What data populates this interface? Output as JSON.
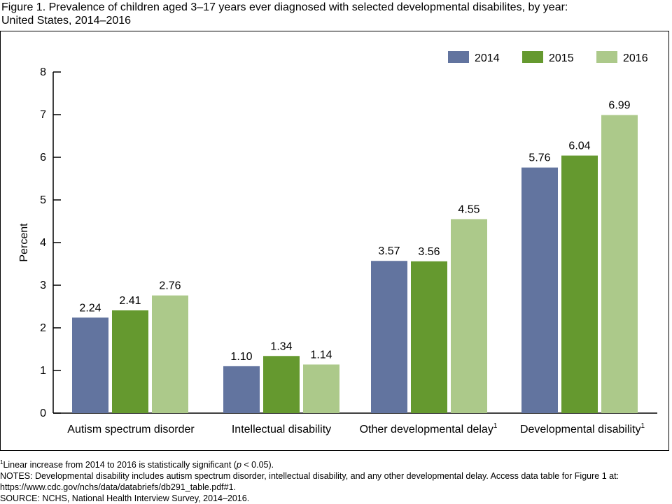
{
  "figure": {
    "title_line1": "Figure 1. Prevalence of children aged 3–17 years ever diagnosed with selected developmental disabilites, by year:",
    "title_line2": "United States, 2014–2016"
  },
  "colors": {
    "2014": "#62749f",
    "2015": "#65992f",
    "2016": "#acc98a"
  },
  "chart_data": {
    "type": "bar",
    "title": "",
    "xlabel": "",
    "ylabel": "Percent",
    "ylim": [
      0,
      8
    ],
    "yticks": [
      "0",
      "1",
      "2",
      "3",
      "4",
      "5",
      "6",
      "7",
      "8"
    ],
    "categories": [
      {
        "label": "Autism spectrum disorder",
        "footnote": ""
      },
      {
        "label": "Intellectual disability",
        "footnote": ""
      },
      {
        "label": "Other developmental delay",
        "footnote": "1"
      },
      {
        "label": "Developmental disability",
        "footnote": "1"
      }
    ],
    "series": [
      {
        "name": "2014",
        "values": [
          2.24,
          1.1,
          3.57,
          5.76
        ],
        "labels": [
          "2.24",
          "1.10",
          "3.57",
          "5.76"
        ]
      },
      {
        "name": "2015",
        "values": [
          2.41,
          1.34,
          3.56,
          6.04
        ],
        "labels": [
          "2.41",
          "1.34",
          "3.56",
          "6.04"
        ]
      },
      {
        "name": "2016",
        "values": [
          2.76,
          1.14,
          4.55,
          6.99
        ],
        "labels": [
          "2.76",
          "1.14",
          "4.55",
          "6.99"
        ]
      }
    ],
    "legend_position": "top-right",
    "grid": false
  },
  "notes": {
    "footnote_marker": "1",
    "footnote_text_before": "Linear increase from 2014 to 2016 is statistically significant (",
    "footnote_italic": "p",
    "footnote_text_after": " < 0.05).",
    "notes_line1": "NOTES: Developmental disability includes autism spectrum disorder, intellectual disability, and any other developmental delay. Access data table for Figure 1 at:",
    "notes_line2": "https://www.cdc.gov/nchs/data/databriefs/db291_table.pdf#1.",
    "source": "SOURCE: NCHS, National Health Interview Survey, 2014–2016."
  }
}
